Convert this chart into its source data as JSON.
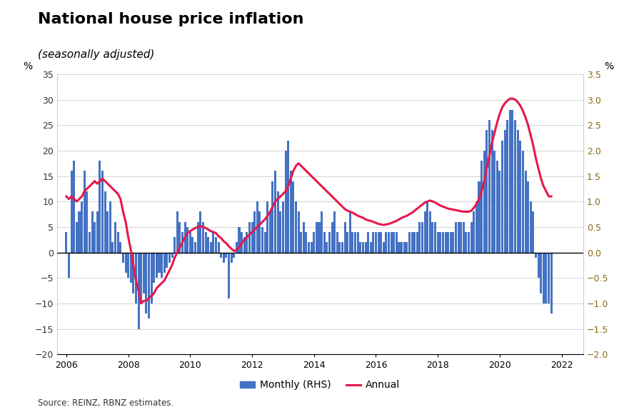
{
  "title": "National house price inflation",
  "subtitle": "(seasonally adjusted)",
  "source": "Source: REINZ, RBNZ estimates.",
  "left_ylabel": "%",
  "right_ylabel": "%",
  "bar_color": "#4472C4",
  "line_color": "#E8174B",
  "background_color": "#FFFFFF",
  "left_ylim": [
    -20,
    35
  ],
  "right_ylim": [
    -2,
    3.5
  ],
  "left_yticks": [
    -20,
    -15,
    -10,
    -5,
    0,
    5,
    10,
    15,
    20,
    25,
    30,
    35
  ],
  "right_yticks": [
    -2,
    -1.5,
    -1,
    -0.5,
    0,
    0.5,
    1,
    1.5,
    2,
    2.5,
    3,
    3.5
  ],
  "xticks": [
    2006,
    2008,
    2010,
    2012,
    2014,
    2016,
    2018,
    2020,
    2022
  ],
  "xlim": [
    2005.7,
    2022.7
  ],
  "monthly_data": [
    4.0,
    -5.0,
    16.0,
    18.0,
    6.0,
    8.0,
    10.0,
    16.0,
    12.0,
    4.0,
    8.0,
    6.0,
    8.0,
    18.0,
    16.0,
    12.0,
    8.0,
    10.0,
    2.0,
    6.0,
    4.0,
    2.0,
    -2.0,
    -4.0,
    -5.0,
    -6.0,
    -8.0,
    -10.0,
    -15.0,
    -10.0,
    -8.0,
    -12.0,
    -13.0,
    -10.0,
    -6.0,
    -5.0,
    -4.0,
    -5.0,
    -4.0,
    -3.0,
    -2.0,
    -1.0,
    3.0,
    8.0,
    6.0,
    4.0,
    6.0,
    5.0,
    4.0,
    3.0,
    2.0,
    6.0,
    8.0,
    6.0,
    4.0,
    3.0,
    2.0,
    4.0,
    3.0,
    2.0,
    -1.0,
    -2.0,
    -1.0,
    -9.0,
    -2.0,
    -1.0,
    2.0,
    5.0,
    4.0,
    3.0,
    4.0,
    6.0,
    6.0,
    8.0,
    10.0,
    8.0,
    5.0,
    4.0,
    10.0,
    8.0,
    14.0,
    16.0,
    12.0,
    8.0,
    10.0,
    20.0,
    22.0,
    16.0,
    14.0,
    10.0,
    8.0,
    4.0,
    6.0,
    4.0,
    2.0,
    2.0,
    4.0,
    6.0,
    6.0,
    8.0,
    4.0,
    2.0,
    4.0,
    6.0,
    8.0,
    4.0,
    2.0,
    2.0,
    6.0,
    4.0,
    8.0,
    4.0,
    4.0,
    4.0,
    2.0,
    2.0,
    2.0,
    4.0,
    2.0,
    4.0,
    4.0,
    4.0,
    4.0,
    2.0,
    4.0,
    4.0,
    4.0,
    4.0,
    4.0,
    2.0,
    2.0,
    2.0,
    2.0,
    4.0,
    4.0,
    4.0,
    4.0,
    6.0,
    6.0,
    8.0,
    10.0,
    8.0,
    6.0,
    6.0,
    4.0,
    4.0,
    4.0,
    4.0,
    4.0,
    4.0,
    4.0,
    6.0,
    6.0,
    6.0,
    6.0,
    4.0,
    4.0,
    6.0,
    8.0,
    10.0,
    14.0,
    18.0,
    20.0,
    24.0,
    26.0,
    24.0,
    20.0,
    18.0,
    16.0,
    22.0,
    24.0,
    26.0,
    28.0,
    28.0,
    26.0,
    24.0,
    22.0,
    20.0,
    16.0,
    14.0,
    10.0,
    8.0,
    -1.0,
    -5.0,
    -8.0,
    -10.0,
    -10.0,
    -10.0,
    -12.0
  ],
  "annual_data": [
    1.1,
    1.05,
    1.1,
    1.05,
    1.0,
    1.05,
    1.1,
    1.2,
    1.25,
    1.3,
    1.35,
    1.4,
    1.35,
    1.4,
    1.45,
    1.4,
    1.35,
    1.3,
    1.25,
    1.2,
    1.15,
    1.05,
    0.8,
    0.6,
    0.3,
    0.05,
    -0.25,
    -0.55,
    -0.75,
    -1.0,
    -0.95,
    -0.95,
    -0.9,
    -0.85,
    -0.8,
    -0.7,
    -0.65,
    -0.6,
    -0.55,
    -0.45,
    -0.35,
    -0.25,
    -0.1,
    0.0,
    0.1,
    0.2,
    0.3,
    0.38,
    0.42,
    0.45,
    0.48,
    0.5,
    0.52,
    0.5,
    0.48,
    0.45,
    0.42,
    0.4,
    0.38,
    0.32,
    0.28,
    0.22,
    0.18,
    0.12,
    0.07,
    0.03,
    0.05,
    0.1,
    0.18,
    0.25,
    0.3,
    0.35,
    0.4,
    0.45,
    0.5,
    0.55,
    0.6,
    0.65,
    0.72,
    0.8,
    0.9,
    1.0,
    1.05,
    1.1,
    1.15,
    1.2,
    1.3,
    1.45,
    1.6,
    1.7,
    1.75,
    1.7,
    1.65,
    1.6,
    1.55,
    1.5,
    1.45,
    1.4,
    1.35,
    1.3,
    1.25,
    1.2,
    1.15,
    1.1,
    1.05,
    1.0,
    0.95,
    0.9,
    0.85,
    0.82,
    0.8,
    0.78,
    0.75,
    0.72,
    0.7,
    0.68,
    0.65,
    0.63,
    0.62,
    0.6,
    0.58,
    0.56,
    0.55,
    0.54,
    0.55,
    0.56,
    0.58,
    0.6,
    0.62,
    0.65,
    0.68,
    0.7,
    0.72,
    0.75,
    0.78,
    0.82,
    0.86,
    0.9,
    0.94,
    0.98,
    1.0,
    1.02,
    1.0,
    0.98,
    0.95,
    0.92,
    0.9,
    0.88,
    0.86,
    0.85,
    0.84,
    0.83,
    0.82,
    0.81,
    0.8,
    0.8,
    0.8,
    0.82,
    0.88,
    0.95,
    1.05,
    1.2,
    1.4,
    1.65,
    1.9,
    2.15,
    2.35,
    2.55,
    2.72,
    2.85,
    2.93,
    2.98,
    3.02,
    3.02,
    3.0,
    2.95,
    2.88,
    2.78,
    2.65,
    2.5,
    2.3,
    2.1,
    1.85,
    1.65,
    1.45,
    1.3,
    1.2,
    1.1,
    1.1
  ]
}
